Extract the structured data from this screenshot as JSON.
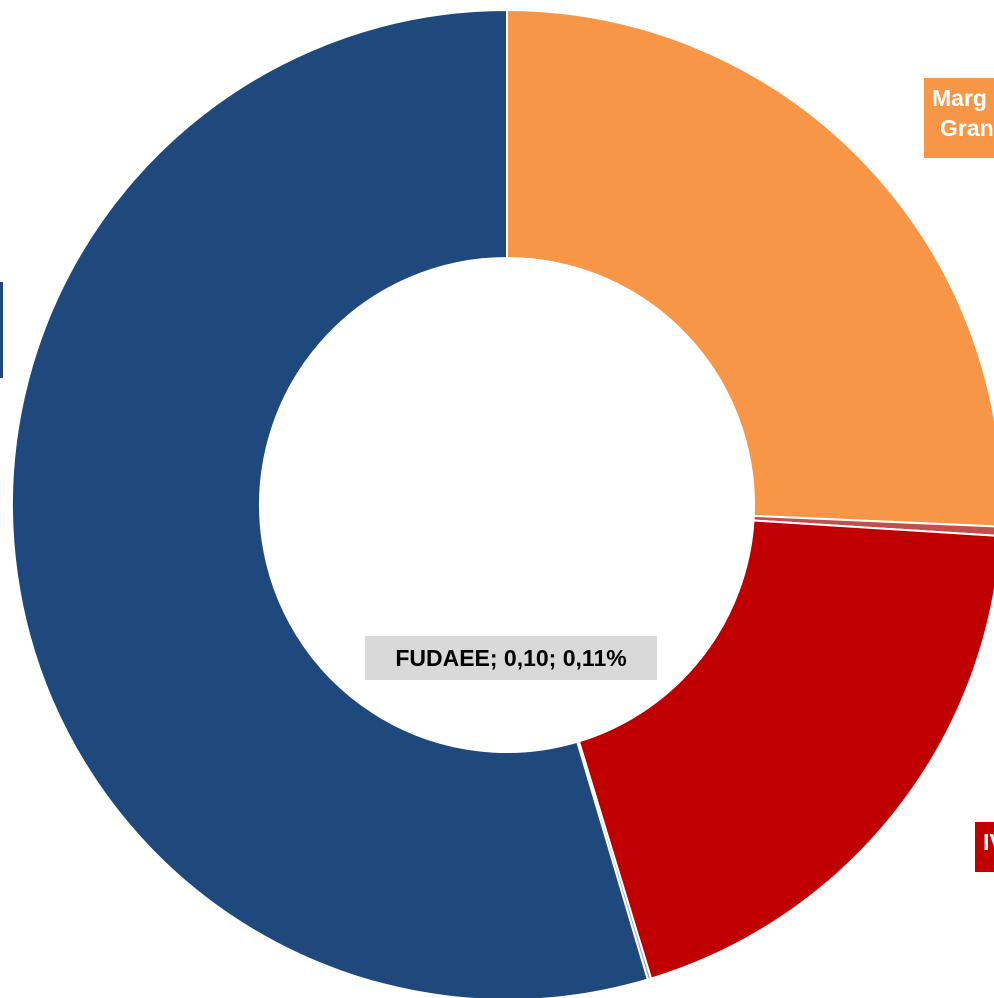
{
  "chart_data": {
    "type": "pie",
    "variant": "donut",
    "slices": [
      {
        "name": "Margen Gran",
        "value": 25.7,
        "color": "#f79646",
        "label_lines": [
          "Marg",
          "Gran"
        ],
        "label_color": "#f79646",
        "label_text_color": "#ffffff"
      },
      {
        "name": "",
        "value": 0.3,
        "color": "#c0504d"
      },
      {
        "name": "IVA",
        "value": 19.3,
        "color": "#c00000",
        "label_lines": [
          "IV"
        ],
        "label_color": "#c00000",
        "label_text_color": "#ffffff"
      },
      {
        "name": "FUDAEE",
        "value": 0.11,
        "color": "#a6a6a6",
        "label_lines": [
          "FUDAEE; 0,10; 0,11%"
        ],
        "label_color": "#d9d9d9",
        "label_text_color": "#000000"
      },
      {
        "name": "",
        "value": 54.59,
        "color": "#1f497d"
      }
    ],
    "start_angle": "12 o'clock",
    "direction": "clockwise",
    "legend": "none"
  }
}
